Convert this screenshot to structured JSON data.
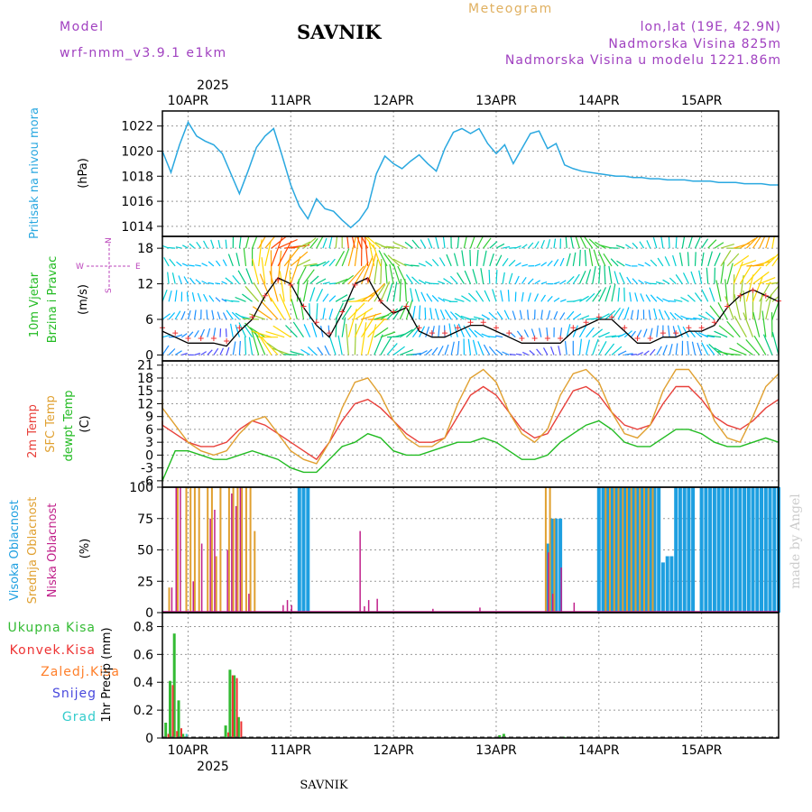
{
  "header": {
    "model_label": "Model",
    "model_name": "wrf-nmm_v3.9.1  e1km",
    "station_title": "SAVNIK",
    "chart_kind": "Meteogram",
    "lonlat": "lon,lat (19E, 42.9N)",
    "elevation": "Nadmorska Visina 825m",
    "model_elevation": "Nadmorska Visina u modelu 1221.86m"
  },
  "x_axis": {
    "year_label": "2025",
    "day_labels": [
      "10APR",
      "11APR",
      "12APR",
      "13APR",
      "14APR",
      "15APR"
    ],
    "start_hour": -6,
    "end_hour": 138
  },
  "footer": {
    "station": "SAVNIK",
    "watermark": "made by Angel"
  },
  "colors": {
    "pressure": "#2aa8e0",
    "temp2m": "#e8403a",
    "sfc_temp": "#e0a030",
    "dewpoint": "#22bb22",
    "high_cloud": "#1e9fe0",
    "mid_cloud": "#e0a030",
    "low_cloud": "#c0208a",
    "precip_total": "#33bb33",
    "precip_conv": "#ee3333",
    "precip_freezing": "#ff7f2a",
    "snow": "#4848dd",
    "hail": "#33cccc",
    "wind_label": "#22bb22",
    "wind_label2": "#33bb33",
    "compass": "#bb44bb",
    "header_purple": "#a040c0",
    "header_gold": "#e0b060",
    "watermark": "#cccccc"
  },
  "panels": {
    "pressure": {
      "title": "Pritisak na nivou mora",
      "unit": "(hPa)",
      "ticks": [
        "1014",
        "1016",
        "1018",
        "1020",
        "1022"
      ]
    },
    "wind": {
      "title1": "10m  Vjetar",
      "title2": "Brzina i Pravac",
      "unit": "(m/s)",
      "ticks": [
        "0",
        "6",
        "12",
        "18"
      ],
      "compass_w": "W",
      "compass_e": "E",
      "compass_n": "N",
      "compass_s": "S"
    },
    "temp": {
      "title1": "2m Temp",
      "title2": "SFC Temp",
      "title3": "dewpt Temp",
      "unit": "(C)",
      "ticks": [
        "-6",
        "-3",
        "0",
        "3",
        "6",
        "9",
        "12",
        "15",
        "18",
        "21"
      ]
    },
    "cloud": {
      "title1": "Visoka Oblacnost",
      "title2": "Srednja Oblacnost",
      "title3": "Niska Oblacnost",
      "unit": "(%)",
      "ticks": [
        "0",
        "25",
        "50",
        "75",
        "100"
      ]
    },
    "precip": {
      "legend": [
        "Ukupna Kisa",
        "Konvek.Kisa",
        "Zaledj.Kisa",
        "Snijeg",
        "Grad"
      ],
      "unit": "1hr Precip (mm)",
      "ticks": [
        "0",
        "0.2",
        "0.4",
        "0.6",
        "0.8"
      ]
    }
  },
  "chart_data": [
    {
      "type": "line",
      "name": "Pritisak na nivou mora",
      "ylabel": "(hPa)",
      "ylim": [
        1013.2,
        1023.2
      ],
      "x_hours": [
        -6,
        -4,
        -2,
        0,
        2,
        4,
        6,
        8,
        10,
        12,
        14,
        16,
        18,
        20,
        22,
        24,
        26,
        28,
        30,
        32,
        34,
        36,
        38,
        40,
        42,
        44,
        46,
        48,
        50,
        52,
        54,
        56,
        58,
        60,
        62,
        64,
        66,
        68,
        70,
        72,
        74,
        76,
        78,
        80,
        82,
        84,
        86,
        88,
        90,
        92,
        94,
        96,
        98,
        100,
        102,
        104,
        106,
        108,
        110,
        112,
        114,
        116,
        118,
        120,
        122,
        124,
        126,
        128,
        130,
        132,
        134,
        136,
        138
      ],
      "values": [
        1020.0,
        1018.3,
        1020.5,
        1022.3,
        1021.2,
        1020.8,
        1020.5,
        1019.8,
        1018.2,
        1016.6,
        1018.4,
        1020.3,
        1021.2,
        1021.8,
        1019.6,
        1017.3,
        1015.6,
        1014.6,
        1016.2,
        1015.4,
        1015.2,
        1014.5,
        1013.9,
        1014.5,
        1015.5,
        1018.2,
        1019.6,
        1019.0,
        1018.6,
        1019.2,
        1019.7,
        1019.0,
        1018.4,
        1020.2,
        1021.5,
        1021.8,
        1021.4,
        1021.8,
        1020.6,
        1019.8,
        1020.5,
        1019.0,
        1020.2,
        1021.4,
        1021.6,
        1020.2,
        1020.6,
        1018.9,
        1018.6,
        1018.4,
        1018.3,
        1018.2,
        1018.1,
        1018.0,
        1018.0,
        1017.9,
        1017.9,
        1017.8,
        1017.8,
        1017.7,
        1017.7,
        1017.7,
        1017.6,
        1017.6,
        1017.6,
        1017.5,
        1017.5,
        1017.5,
        1017.4,
        1017.4,
        1017.4,
        1017.3,
        1017.3
      ]
    },
    {
      "type": "line",
      "name": "10m Vjetar",
      "ylabel": "(m/s)",
      "ylim": [
        -1,
        20
      ],
      "x_hours": [
        -6,
        -3,
        0,
        3,
        6,
        9,
        12,
        15,
        18,
        21,
        24,
        27,
        30,
        33,
        36,
        39,
        42,
        45,
        48,
        51,
        54,
        57,
        60,
        63,
        66,
        69,
        72,
        75,
        78,
        81,
        84,
        87,
        90,
        93,
        96,
        99,
        102,
        105,
        108,
        111,
        114,
        117,
        120,
        123,
        126,
        129,
        132,
        135,
        138
      ],
      "values": [
        4,
        3,
        2,
        2,
        2,
        1.5,
        4,
        6,
        10,
        13,
        12,
        8,
        5,
        3,
        7,
        12,
        13,
        9,
        7,
        8,
        4,
        3,
        3,
        4,
        5,
        5,
        4,
        3,
        2,
        2,
        2,
        2,
        4,
        5,
        6,
        6,
        4,
        2,
        2,
        3,
        3,
        4,
        4,
        5,
        8,
        10,
        11,
        10,
        9
      ]
    },
    {
      "type": "line",
      "series": [
        {
          "name": "2m Temp",
          "values": [
            8,
            7,
            5,
            3,
            2,
            2,
            3,
            6,
            8,
            7,
            5,
            3,
            1,
            -1,
            3,
            8,
            12,
            13,
            11,
            8,
            5,
            3,
            3,
            4,
            9,
            14,
            16,
            14,
            10,
            6,
            4,
            5,
            10,
            15,
            16,
            14,
            10,
            7,
            6,
            7,
            12,
            16,
            16,
            13,
            9,
            7,
            6,
            8,
            11,
            13
          ]
        },
        {
          "name": "SFC Temp",
          "values": [
            13,
            11,
            7,
            3,
            1,
            0,
            1,
            5,
            8,
            9,
            5,
            1,
            -1,
            -2,
            3,
            11,
            17,
            18,
            14,
            8,
            4,
            2,
            2,
            4,
            12,
            18,
            20,
            17,
            10,
            5,
            3,
            6,
            14,
            19,
            20,
            17,
            10,
            5,
            4,
            7,
            15,
            20,
            20,
            16,
            8,
            4,
            3,
            9,
            16,
            19
          ]
        },
        {
          "name": "dewpt Temp",
          "values": [
            -5,
            -6,
            1,
            1,
            0,
            -1,
            -1,
            0,
            1,
            0,
            -1,
            -3,
            -4,
            -4,
            -1,
            2,
            3,
            5,
            4,
            1,
            0,
            0,
            1,
            2,
            3,
            3,
            4,
            3,
            1,
            -1,
            -1,
            0,
            3,
            5,
            7,
            8,
            6,
            3,
            2,
            2,
            4,
            6,
            6,
            5,
            3,
            2,
            2,
            3,
            4,
            3
          ]
        }
      ],
      "ylabel": "(C)",
      "ylim": [
        -7.5,
        22
      ],
      "x_hours_step": 3,
      "x_hours_start": -9
    },
    {
      "type": "bar",
      "name": "Oblacnost",
      "ylabel": "(%)",
      "ylim": [
        0,
        100
      ],
      "series": [
        {
          "name": "Visoka Oblacnost",
          "x_hours": [
            26,
            27,
            28,
            84,
            85,
            86,
            87,
            96,
            97,
            98,
            99,
            100,
            101,
            102,
            103,
            104,
            105,
            106,
            107,
            108,
            109,
            110,
            111,
            112,
            113,
            114,
            115,
            116,
            117,
            118,
            120,
            121,
            122,
            123,
            124,
            125,
            126,
            127,
            128,
            129,
            130,
            131,
            132,
            133,
            134,
            135,
            136,
            137,
            138
          ],
          "values": [
            100,
            100,
            100,
            55,
            75,
            75,
            75,
            100,
            100,
            100,
            100,
            100,
            100,
            100,
            100,
            100,
            100,
            100,
            100,
            100,
            100,
            100,
            40,
            45,
            45,
            100,
            100,
            100,
            100,
            100,
            100,
            100,
            100,
            100,
            100,
            100,
            100,
            100,
            100,
            100,
            100,
            100,
            100,
            100,
            100,
            100,
            100,
            100,
            100
          ]
        },
        {
          "name": "Srednja Oblacnost",
          "x_hours": [
            -4,
            -2,
            0,
            1,
            2,
            3,
            5,
            6,
            7,
            8,
            10,
            11,
            12,
            13,
            14,
            15,
            16,
            84,
            85,
            86,
            98,
            99,
            100,
            101,
            102,
            103,
            104,
            105,
            106,
            107,
            108,
            109
          ],
          "values": [
            20,
            100,
            100,
            100,
            100,
            100,
            100,
            100,
            45,
            100,
            100,
            100,
            100,
            100,
            100,
            100,
            65,
            100,
            100,
            75,
            100,
            100,
            100,
            100,
            100,
            100,
            100,
            100,
            100,
            100,
            100,
            100
          ]
        },
        {
          "name": "Niska Oblacnost",
          "x_hours": [
            -4,
            -3,
            -2,
            1,
            3,
            5,
            6,
            9,
            10,
            11,
            12,
            14,
            22,
            23,
            24,
            40,
            41,
            42,
            44,
            57,
            68,
            84,
            85,
            87,
            90
          ],
          "values": [
            20,
            100,
            100,
            25,
            55,
            75,
            82,
            50,
            95,
            85,
            100,
            15,
            6,
            10,
            6,
            65,
            5,
            10,
            11,
            3,
            4,
            48,
            15,
            36,
            8
          ]
        }
      ]
    },
    {
      "type": "bar",
      "name": "1hr Precip",
      "ylabel": "1hr Precip (mm)",
      "ylim": [
        0,
        0.9
      ],
      "series": [
        {
          "name": "Ukupna Kisa",
          "x_hours": [
            -5,
            -4,
            -3,
            -2,
            -1,
            9,
            10,
            11,
            12,
            73,
            74,
            86,
            88,
            89
          ],
          "values": [
            0.11,
            0.41,
            0.75,
            0.27,
            0.03,
            0.09,
            0.49,
            0.45,
            0.15,
            0.02,
            0.03,
            0.01,
            0.01,
            0.01
          ]
        },
        {
          "name": "Konvek.Kisa",
          "x_hours": [
            -5,
            -4,
            -3,
            -2,
            9,
            10,
            11,
            12
          ],
          "values": [
            0.03,
            0.38,
            0.05,
            0.07,
            0.04,
            0.45,
            0.43,
            0.12
          ]
        },
        {
          "name": "Zaledj.Kisa",
          "x_hours": [],
          "values": []
        },
        {
          "name": "Snijeg",
          "x_hours": [],
          "values": []
        },
        {
          "name": "Grad",
          "x_hours": [
            -1
          ],
          "values": [
            0.03
          ]
        }
      ]
    }
  ]
}
